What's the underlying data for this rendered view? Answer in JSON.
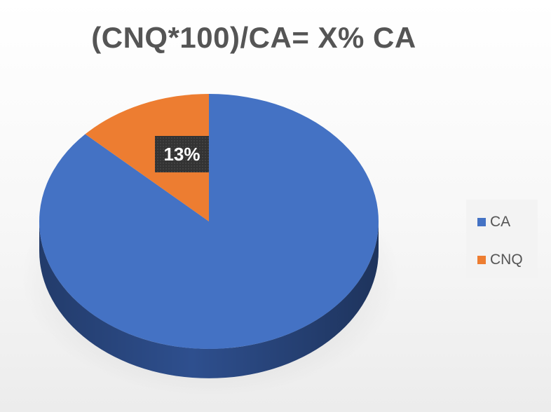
{
  "chart_data": {
    "type": "pie",
    "title": "(CNQ*100)/CA= X% CA",
    "slices": [
      {
        "label": "CA",
        "value": 87,
        "color": "#4472c4",
        "side_color": "#2e4f8e"
      },
      {
        "label": "CNQ",
        "value": 13,
        "color": "#ed7d31",
        "side_color": "#ae5a22"
      }
    ],
    "data_labels": [
      {
        "series": "CNQ",
        "text": "13%"
      }
    ],
    "legend": {
      "position": "right"
    },
    "three_d": true
  }
}
